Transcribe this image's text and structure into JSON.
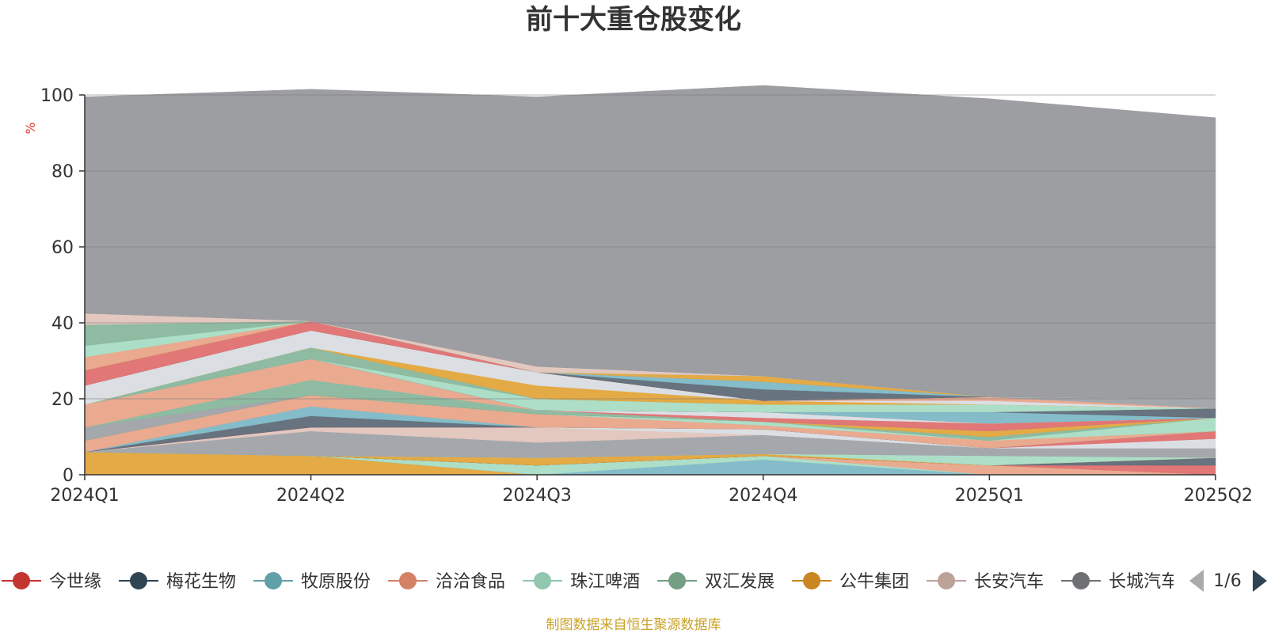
{
  "chart_data": {
    "type": "area",
    "title": "前十大重仓股变化",
    "unit_label": "%",
    "categories": [
      "2024Q1",
      "2024Q2",
      "2024Q3",
      "2024Q4",
      "2025Q1",
      "2025Q2"
    ],
    "yaxis": {
      "min": 0,
      "max": 100,
      "ticks": [
        "0",
        "20",
        "40",
        "60",
        "80",
        "100"
      ]
    },
    "grid": true,
    "stacked": true,
    "series": [
      {
        "name": "",
        "color": "#e3a53b",
        "values": [
          6,
          5,
          0,
          0,
          0,
          0
        ]
      },
      {
        "name": "",
        "color": "#7eb8c6",
        "values": [
          0,
          0,
          0,
          4,
          0,
          0
        ]
      },
      {
        "name": "",
        "color": "#a9dcc4",
        "values": [
          0,
          0,
          2.5,
          1,
          0,
          0
        ]
      },
      {
        "name": "",
        "color": "#e8a58a",
        "values": [
          0,
          0,
          0,
          0,
          2.5,
          0
        ]
      },
      {
        "name": "",
        "color": "#e07070",
        "values": [
          0,
          0,
          0,
          0,
          0,
          2.5
        ]
      },
      {
        "name": "",
        "color": "#5f6b78",
        "values": [
          0,
          0,
          0,
          0,
          0,
          2
        ]
      },
      {
        "name": "",
        "color": "#e3a53b",
        "values": [
          0,
          0,
          2,
          0.5,
          0,
          0
        ]
      },
      {
        "name": "",
        "color": "#a9dcc4",
        "values": [
          0,
          0,
          0,
          0,
          2.5,
          0
        ]
      },
      {
        "name": "",
        "color": "#9fa3a8",
        "values": [
          0,
          6.5,
          4,
          5,
          2,
          2.5
        ]
      },
      {
        "name": "",
        "color": "#e2c5bd",
        "values": [
          0,
          1,
          4,
          0,
          0,
          0
        ]
      },
      {
        "name": "",
        "color": "#d9dde3",
        "values": [
          0,
          0,
          0,
          1.5,
          0,
          2.5
        ]
      },
      {
        "name": "",
        "color": "#e07070",
        "values": [
          0,
          0,
          0,
          0,
          0,
          2
        ]
      },
      {
        "name": "",
        "color": "#5f6b78",
        "values": [
          0,
          3,
          0,
          0,
          0,
          0
        ]
      },
      {
        "name": "",
        "color": "#7eb8c6",
        "values": [
          0,
          2.5,
          0,
          0,
          0,
          0
        ]
      },
      {
        "name": "",
        "color": "#e8a58a",
        "values": [
          3,
          3,
          3.5,
          1,
          2,
          0
        ]
      },
      {
        "name": "",
        "color": "#a9dcc4",
        "values": [
          0,
          0,
          0,
          1,
          0,
          3.5
        ]
      },
      {
        "name": "",
        "color": "#88b79c",
        "values": [
          0,
          0,
          0,
          0,
          1,
          0
        ]
      },
      {
        "name": "",
        "color": "#e3a53b",
        "values": [
          0,
          0,
          0,
          0,
          1.5,
          0
        ]
      },
      {
        "name": "",
        "color": "#9fa3a8",
        "values": [
          3.5,
          0,
          0,
          0,
          0,
          0
        ]
      },
      {
        "name": "",
        "color": "#88b79c",
        "values": [
          0,
          4,
          1,
          0,
          0,
          0
        ]
      },
      {
        "name": "",
        "color": "#e07070",
        "values": [
          0,
          0,
          0,
          1,
          2,
          0
        ]
      },
      {
        "name": "",
        "color": "#d9dde3",
        "values": [
          0,
          0,
          0,
          1.5,
          0,
          0
        ]
      },
      {
        "name": "",
        "color": "#e8a58a",
        "values": [
          6,
          5.5,
          0,
          0,
          0,
          0
        ]
      },
      {
        "name": "",
        "color": "#7eb8c6",
        "values": [
          0,
          0,
          0,
          0,
          3,
          0
        ]
      },
      {
        "name": "",
        "color": "#5f6b78",
        "values": [
          0,
          0,
          0,
          0,
          0,
          2.5
        ]
      },
      {
        "name": "",
        "color": "#a9dcc4",
        "values": [
          0,
          0,
          3,
          2,
          2,
          0
        ]
      },
      {
        "name": "",
        "color": "#88b79c",
        "values": [
          0,
          3,
          0,
          0,
          0,
          0
        ]
      },
      {
        "name": "",
        "color": "#e3a53b",
        "values": [
          0,
          0,
          3.5,
          1,
          0,
          0
        ]
      },
      {
        "name": "",
        "color": "#d9dde3",
        "values": [
          5,
          4.5,
          3.5,
          0,
          1,
          0
        ]
      },
      {
        "name": "",
        "color": "#e8a58a",
        "values": [
          0,
          0,
          0,
          0,
          1,
          0
        ]
      },
      {
        "name": "",
        "color": "#9fa3a8",
        "values": [
          0,
          0,
          0,
          0,
          0,
          2.5
        ]
      },
      {
        "name": "",
        "color": "#e07070",
        "values": [
          4,
          2.5,
          0,
          0,
          0,
          0
        ]
      },
      {
        "name": "",
        "color": "#5f6b78",
        "values": [
          0,
          0,
          0,
          3,
          0,
          0
        ]
      },
      {
        "name": "",
        "color": "#7eb8c6",
        "values": [
          0,
          0,
          0,
          2,
          0,
          0
        ]
      },
      {
        "name": "",
        "color": "#e3a53b",
        "values": [
          0,
          0,
          0,
          1.5,
          0,
          0
        ]
      },
      {
        "name": "",
        "color": "#e8a58a",
        "values": [
          3.5,
          0,
          0,
          0,
          0,
          0
        ]
      },
      {
        "name": "",
        "color": "#a9dcc4",
        "values": [
          3,
          0,
          0,
          0,
          0,
          0
        ]
      },
      {
        "name": "",
        "color": "#88b79c",
        "values": [
          5.5,
          0,
          0,
          0,
          0,
          0
        ]
      },
      {
        "name": "",
        "color": "#e2c5bd",
        "values": [
          3,
          0,
          1.5,
          0,
          0,
          0
        ]
      },
      {
        "name": "",
        "color": "#98999d",
        "values": [
          57,
          61,
          71,
          76.5,
          78.5,
          74
        ]
      }
    ]
  },
  "legend": {
    "items": [
      {
        "name": "今世缘",
        "color": "#c23531"
      },
      {
        "name": "梅花生物",
        "color": "#2f4554"
      },
      {
        "name": "牧原股份",
        "color": "#61a0a8"
      },
      {
        "name": "洽洽食品",
        "color": "#d48265"
      },
      {
        "name": "珠江啤酒",
        "color": "#91c7ae"
      },
      {
        "name": "双汇发展",
        "color": "#749f83"
      },
      {
        "name": "公牛集团",
        "color": "#ca8622"
      },
      {
        "name": "长安汽车",
        "color": "#bda29a"
      },
      {
        "name": "长城汽车",
        "color": "#6e7074"
      }
    ],
    "page": "1/6"
  },
  "source": "制图数据来自恒生聚源数据库"
}
